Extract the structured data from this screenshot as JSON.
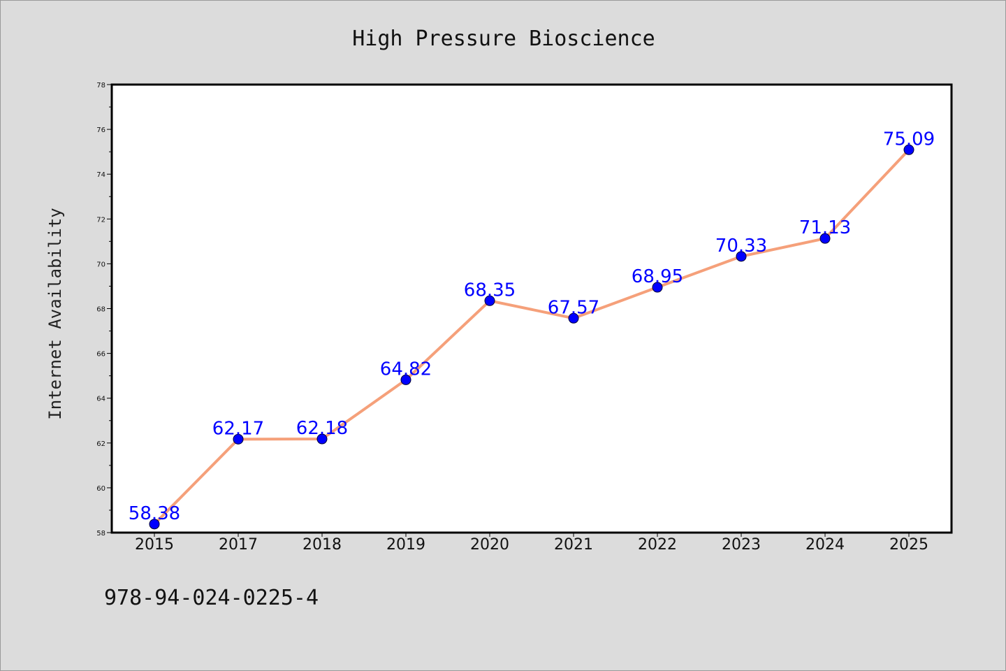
{
  "chart_data": {
    "type": "line",
    "title": "High Pressure Bioscience",
    "xlabel": "",
    "ylabel": "Internet Availability",
    "categories": [
      "2015",
      "2017",
      "2018",
      "2019",
      "2020",
      "2021",
      "2022",
      "2023",
      "2024",
      "2025"
    ],
    "series": [
      {
        "values": [
          58.38,
          62.17,
          62.18,
          64.82,
          68.35,
          67.57,
          68.95,
          70.33,
          71.13,
          75.09
        ],
        "labels": [
          "58.38",
          "62.17",
          "62.18",
          "64.82",
          "68.35",
          "67.57",
          "68.95",
          "70.33",
          "71.13",
          "75.09"
        ],
        "line_color": "#f5a07a",
        "marker_color": "#0000ff"
      }
    ],
    "ylim": [
      58,
      78
    ],
    "yticks": [
      "58",
      "60",
      "62",
      "64",
      "66",
      "68",
      "70",
      "72",
      "74",
      "76",
      "78"
    ],
    "grid": false,
    "legend": "none"
  },
  "footer": {
    "code": "978-94-024-0225-4"
  },
  "colors": {
    "background": "#dcdcdc",
    "plot_background": "#ffffff",
    "axis": "#000000"
  }
}
